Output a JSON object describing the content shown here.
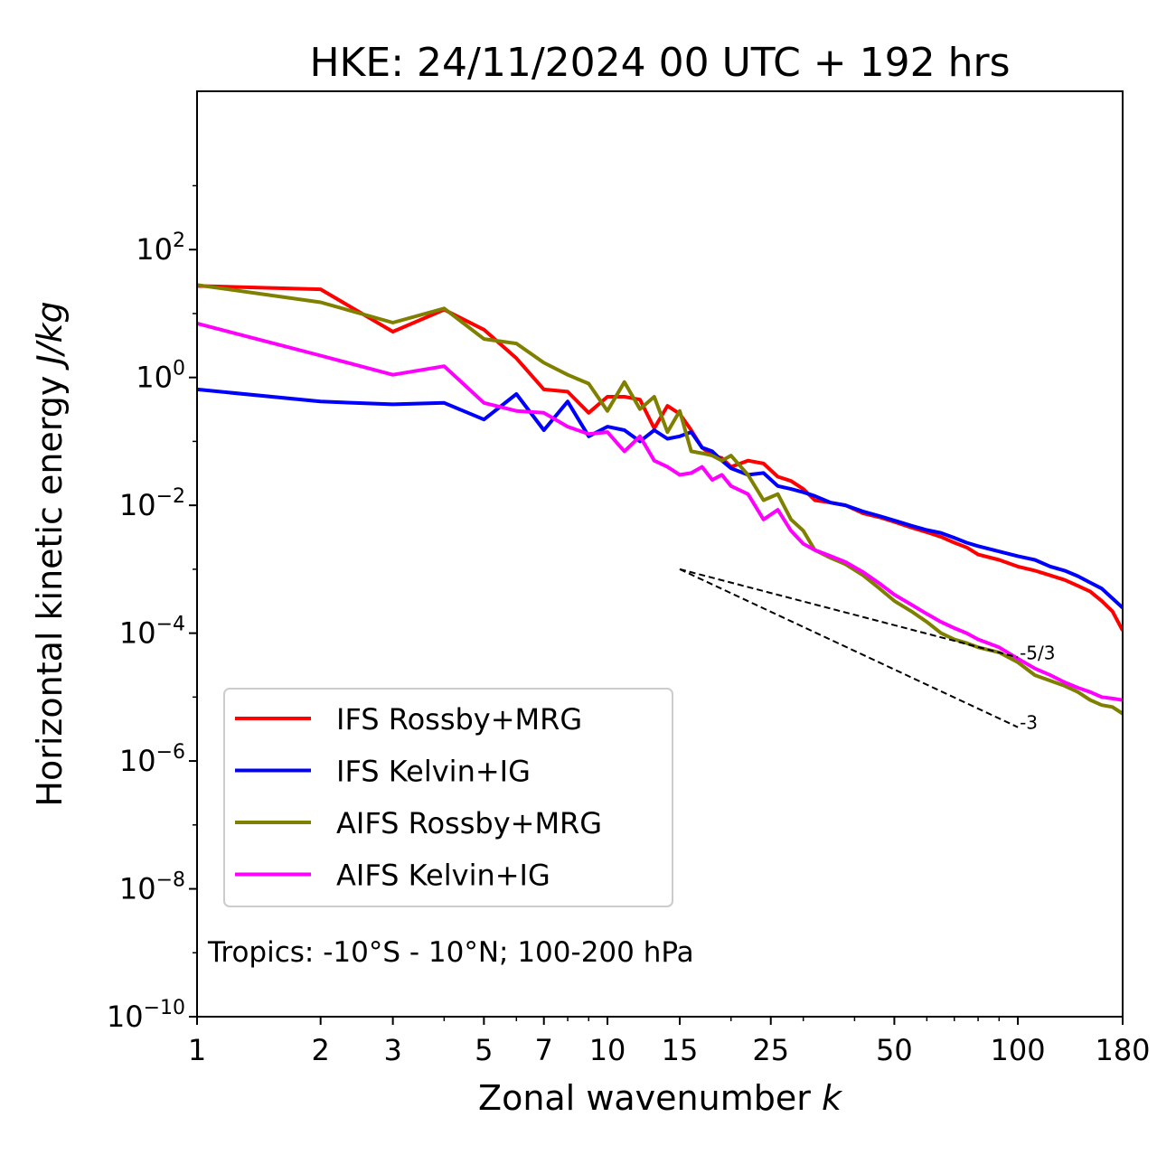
{
  "chart_data": {
    "type": "line",
    "title": "HKE: 24/11/2024 00 UTC + 192 hrs",
    "xlabel": "Zonal wavenumber",
    "xlabel_italic": "k",
    "ylabel": "Horizontal kinetic energy",
    "ylabel_italic": "J/kg",
    "x_scale": "log",
    "y_scale": "log",
    "xlim": [
      1,
      180
    ],
    "ylim": [
      1e-10,
      30000
    ],
    "x_ticks": [
      1,
      2,
      3,
      5,
      7,
      10,
      15,
      25,
      50,
      100,
      180
    ],
    "x_tick_labels": [
      "1",
      "2",
      "3",
      "5",
      "7",
      "10",
      "15",
      "25",
      "50",
      "100",
      "180"
    ],
    "y_ticks": [
      {
        "value": 1e-10,
        "base": "10",
        "exp": "−10"
      },
      {
        "value": 1e-08,
        "base": "10",
        "exp": "−8"
      },
      {
        "value": 1e-06,
        "base": "10",
        "exp": "−6"
      },
      {
        "value": 0.0001,
        "base": "10",
        "exp": "−4"
      },
      {
        "value": 0.01,
        "base": "10",
        "exp": "−2"
      },
      {
        "value": 1,
        "base": "10",
        "exp": "0"
      },
      {
        "value": 100,
        "base": "10",
        "exp": "2"
      }
    ],
    "legend_position": "lower-left",
    "annotation": "Tropics: -10°S - 10°N; 100-200 hPa",
    "series": [
      {
        "name": "IFS Rossby+MRG",
        "color": "#ff0000",
        "points": [
          [
            1,
            27
          ],
          [
            2,
            24
          ],
          [
            3,
            5.2
          ],
          [
            4,
            11.5
          ],
          [
            5,
            5.6
          ],
          [
            6,
            2
          ],
          [
            7,
            0.65
          ],
          [
            8,
            0.6
          ],
          [
            9,
            0.28
          ],
          [
            10,
            0.5
          ],
          [
            11,
            0.5
          ],
          [
            12,
            0.45
          ],
          [
            13,
            0.16
          ],
          [
            14,
            0.36
          ],
          [
            15,
            0.27
          ],
          [
            16,
            0.15
          ],
          [
            17,
            0.08
          ],
          [
            18,
            0.06
          ],
          [
            19,
            0.055
          ],
          [
            20,
            0.04
          ],
          [
            22,
            0.05
          ],
          [
            24,
            0.045
          ],
          [
            26,
            0.028
          ],
          [
            28,
            0.024
          ],
          [
            30,
            0.018
          ],
          [
            32,
            0.012
          ],
          [
            35,
            0.011
          ],
          [
            38,
            0.01
          ],
          [
            42,
            0.0075
          ],
          [
            46,
            0.0065
          ],
          [
            50,
            0.0055
          ],
          [
            55,
            0.0045
          ],
          [
            60,
            0.0038
          ],
          [
            65,
            0.0032
          ],
          [
            70,
            0.0026
          ],
          [
            75,
            0.0022
          ],
          [
            80,
            0.0017
          ],
          [
            90,
            0.0014
          ],
          [
            100,
            0.0011
          ],
          [
            110,
            0.00095
          ],
          [
            120,
            0.0008
          ],
          [
            130,
            0.00068
          ],
          [
            140,
            0.00055
          ],
          [
            150,
            0.00045
          ],
          [
            160,
            0.00032
          ],
          [
            170,
            0.00022
          ],
          [
            180,
            0.00011
          ]
        ]
      },
      {
        "name": "IFS Kelvin+IG",
        "color": "#0000ff",
        "points": [
          [
            1,
            0.65
          ],
          [
            2,
            0.42
          ],
          [
            3,
            0.38
          ],
          [
            4,
            0.4
          ],
          [
            5,
            0.22
          ],
          [
            6,
            0.55
          ],
          [
            7,
            0.15
          ],
          [
            8,
            0.42
          ],
          [
            9,
            0.12
          ],
          [
            10,
            0.17
          ],
          [
            11,
            0.15
          ],
          [
            12,
            0.1
          ],
          [
            13,
            0.15
          ],
          [
            14,
            0.11
          ],
          [
            15,
            0.12
          ],
          [
            16,
            0.14
          ],
          [
            17,
            0.08
          ],
          [
            18,
            0.07
          ],
          [
            19,
            0.05
          ],
          [
            20,
            0.038
          ],
          [
            22,
            0.03
          ],
          [
            24,
            0.032
          ],
          [
            26,
            0.02
          ],
          [
            28,
            0.018
          ],
          [
            30,
            0.016
          ],
          [
            32,
            0.014
          ],
          [
            35,
            0.011
          ],
          [
            38,
            0.01
          ],
          [
            42,
            0.008
          ],
          [
            46,
            0.0068
          ],
          [
            50,
            0.0058
          ],
          [
            55,
            0.0048
          ],
          [
            60,
            0.0041
          ],
          [
            65,
            0.0037
          ],
          [
            70,
            0.0031
          ],
          [
            75,
            0.0026
          ],
          [
            80,
            0.0023
          ],
          [
            90,
            0.0019
          ],
          [
            100,
            0.0016
          ],
          [
            110,
            0.0014
          ],
          [
            120,
            0.0011
          ],
          [
            130,
            0.00095
          ],
          [
            140,
            0.00078
          ],
          [
            150,
            0.00062
          ],
          [
            160,
            0.0005
          ],
          [
            170,
            0.00035
          ],
          [
            180,
            0.00025
          ]
        ]
      },
      {
        "name": "AIFS Rossby+MRG",
        "color": "#808000",
        "points": [
          [
            1,
            28
          ],
          [
            2,
            15
          ],
          [
            3,
            7.2
          ],
          [
            4,
            12
          ],
          [
            5,
            4
          ],
          [
            6,
            3.4
          ],
          [
            7,
            1.7
          ],
          [
            8,
            1.1
          ],
          [
            9,
            0.8
          ],
          [
            10,
            0.3
          ],
          [
            11,
            0.85
          ],
          [
            12,
            0.32
          ],
          [
            13,
            0.5
          ],
          [
            14,
            0.14
          ],
          [
            15,
            0.3
          ],
          [
            16,
            0.07
          ],
          [
            17,
            0.065
          ],
          [
            18,
            0.06
          ],
          [
            19,
            0.05
          ],
          [
            20,
            0.06
          ],
          [
            22,
            0.03
          ],
          [
            24,
            0.012
          ],
          [
            26,
            0.015
          ],
          [
            28,
            0.006
          ],
          [
            30,
            0.004
          ],
          [
            32,
            0.002
          ],
          [
            35,
            0.0015
          ],
          [
            38,
            0.0012
          ],
          [
            42,
            0.0008
          ],
          [
            46,
            0.0005
          ],
          [
            50,
            0.00032
          ],
          [
            55,
            0.00022
          ],
          [
            60,
            0.00015
          ],
          [
            65,
            0.0001
          ],
          [
            70,
            8e-05
          ],
          [
            75,
            7e-05
          ],
          [
            80,
            6e-05
          ],
          [
            90,
            5e-05
          ],
          [
            100,
            3.5e-05
          ],
          [
            110,
            2.2e-05
          ],
          [
            120,
            1.8e-05
          ],
          [
            130,
            1.5e-05
          ],
          [
            140,
            1.2e-05
          ],
          [
            150,
            9e-06
          ],
          [
            160,
            7.5e-06
          ],
          [
            170,
            7e-06
          ],
          [
            180,
            5.5e-06
          ]
        ]
      },
      {
        "name": "AIFS Kelvin+IG",
        "color": "#ff00ff",
        "points": [
          [
            1,
            7
          ],
          [
            2,
            2.2
          ],
          [
            3,
            1.1
          ],
          [
            4,
            1.5
          ],
          [
            5,
            0.4
          ],
          [
            6,
            0.3
          ],
          [
            7,
            0.28
          ],
          [
            8,
            0.17
          ],
          [
            9,
            0.13
          ],
          [
            10,
            0.14
          ],
          [
            11,
            0.07
          ],
          [
            12,
            0.12
          ],
          [
            13,
            0.05
          ],
          [
            14,
            0.04
          ],
          [
            15,
            0.03
          ],
          [
            16,
            0.032
          ],
          [
            17,
            0.04
          ],
          [
            18,
            0.025
          ],
          [
            19,
            0.03
          ],
          [
            20,
            0.02
          ],
          [
            22,
            0.015
          ],
          [
            24,
            0.006
          ],
          [
            26,
            0.0085
          ],
          [
            28,
            0.004
          ],
          [
            30,
            0.0025
          ],
          [
            32,
            0.002
          ],
          [
            35,
            0.0016
          ],
          [
            38,
            0.0013
          ],
          [
            42,
            0.0009
          ],
          [
            46,
            0.0006
          ],
          [
            50,
            0.0004
          ],
          [
            55,
            0.00028
          ],
          [
            60,
            0.0002
          ],
          [
            65,
            0.00015
          ],
          [
            70,
            0.00012
          ],
          [
            75,
            0.0001
          ],
          [
            80,
            8e-05
          ],
          [
            90,
            6e-05
          ],
          [
            100,
            4e-05
          ],
          [
            110,
            2.8e-05
          ],
          [
            120,
            2.2e-05
          ],
          [
            130,
            1.7e-05
          ],
          [
            140,
            1.4e-05
          ],
          [
            150,
            1.2e-05
          ],
          [
            160,
            1e-05
          ],
          [
            170,
            9.5e-06
          ],
          [
            180,
            9e-06
          ]
        ]
      }
    ],
    "reference_lines": [
      {
        "label": "-5/3",
        "x": [
          15,
          100
        ],
        "y": [
          0.001,
          4.18e-05
        ]
      },
      {
        "label": "-3",
        "x": [
          15,
          100
        ],
        "y": [
          0.001,
          3.38e-06
        ]
      }
    ]
  }
}
